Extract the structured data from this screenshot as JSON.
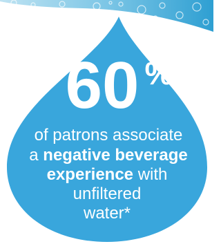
{
  "stat": {
    "number": 60,
    "unit": "%"
  },
  "text": {
    "line1": "of patrons associate",
    "line2_prefix": "a",
    "line2_bold": "negative beverage",
    "line3_bold": "experience",
    "line3_suffix": "with",
    "line4": "unfiltered",
    "line5": "water*"
  }
}
